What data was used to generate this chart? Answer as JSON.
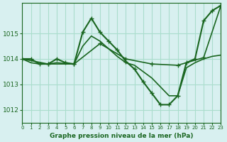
{
  "title": "Graphe pression niveau de la mer (hPa)",
  "background_color": "#d8f0f0",
  "grid_color": "#aaddcc",
  "line_color": "#1a6620",
  "xlim": [
    0,
    23
  ],
  "ylim": [
    1011.5,
    1016.2
  ],
  "yticks": [
    1012,
    1013,
    1014,
    1015
  ],
  "xticks": [
    0,
    1,
    2,
    3,
    4,
    5,
    6,
    7,
    8,
    9,
    10,
    11,
    12,
    13,
    14,
    15,
    16,
    17,
    18,
    19,
    20,
    21,
    22,
    23
  ],
  "series": [
    {
      "x": [
        0,
        1,
        2,
        3,
        4,
        5,
        6,
        7,
        8,
        9,
        10,
        11,
        12,
        13,
        14,
        15,
        16,
        17,
        18,
        19,
        20,
        21,
        22,
        23
      ],
      "y": [
        1014.0,
        1014.0,
        1013.8,
        1013.8,
        1014.0,
        1013.85,
        1013.8,
        1015.05,
        1015.6,
        1015.05,
        1014.7,
        1014.35,
        1013.9,
        1013.6,
        1013.1,
        1012.65,
        1012.2,
        1012.2,
        1012.55,
        1013.85,
        1014.0,
        1015.5,
        1015.9,
        1016.1
      ],
      "marker": "+",
      "linewidth": 1.5
    },
    {
      "x": [
        0,
        1,
        2,
        3,
        4,
        5,
        6,
        7,
        8,
        9,
        10,
        11,
        12,
        13,
        14,
        15,
        16,
        17,
        18,
        19,
        20,
        21,
        22,
        23
      ],
      "y": [
        1014.0,
        1013.85,
        1013.8,
        1013.8,
        1013.85,
        1013.82,
        1013.8,
        1014.5,
        1014.9,
        1014.7,
        1014.4,
        1014.1,
        1013.85,
        1013.75,
        1013.5,
        1013.25,
        1012.9,
        1012.55,
        1012.55,
        1013.65,
        1013.85,
        1014.0,
        1014.1,
        1014.15
      ],
      "marker": null,
      "linewidth": 1.2
    },
    {
      "x": [
        0,
        3,
        6,
        9,
        12,
        15,
        18,
        21,
        23
      ],
      "y": [
        1014.0,
        1013.8,
        1013.8,
        1014.6,
        1014.0,
        1013.8,
        1013.75,
        1014.05,
        1016.1
      ],
      "marker": "+",
      "linewidth": 1.2
    }
  ]
}
